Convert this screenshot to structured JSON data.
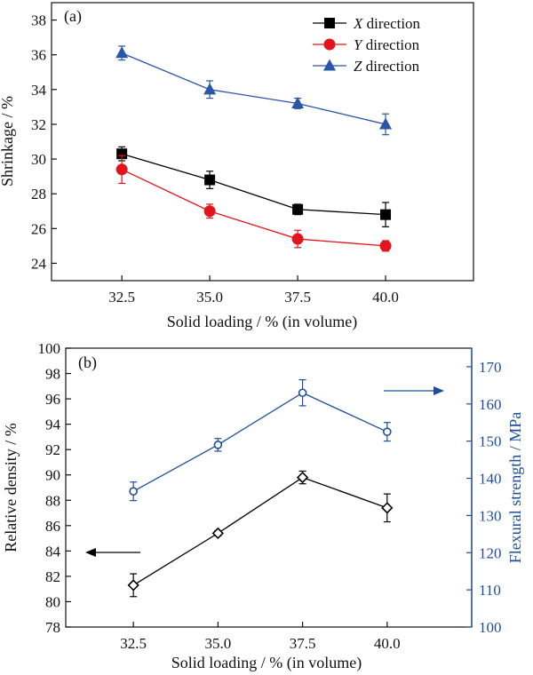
{
  "chart_data": [
    {
      "type": "line",
      "panel_label": "(a)",
      "xlabel": "Solid loading / % (in volume)",
      "ylabel": "Shrinkage / %",
      "x": [
        32.5,
        35.0,
        37.5,
        40.0
      ],
      "x_tick_labels": [
        "32.5",
        "35.0",
        "37.5",
        "40.0"
      ],
      "xlim": [
        30.5,
        42.5
      ],
      "ylim": [
        23,
        39
      ],
      "y_ticks": [
        24,
        26,
        28,
        30,
        32,
        34,
        36,
        38
      ],
      "legend_position": "top-right",
      "series": [
        {
          "name": "X direction",
          "legend_italic": "X",
          "legend_rest": " direction",
          "color": "#000000",
          "marker": "square",
          "values": [
            30.3,
            28.8,
            27.1,
            26.8
          ],
          "errors": [
            0.4,
            0.5,
            0.3,
            0.7
          ]
        },
        {
          "name": "Y direction",
          "legend_italic": "Y",
          "legend_rest": " direction",
          "color": "#e3141b",
          "marker": "circle",
          "values": [
            29.4,
            27.0,
            25.4,
            25.0
          ],
          "errors": [
            0.8,
            0.4,
            0.5,
            0.3
          ]
        },
        {
          "name": "Z direction",
          "legend_italic": "Z",
          "legend_rest": " direction",
          "color": "#2a56a8",
          "marker": "triangle",
          "values": [
            36.1,
            34.0,
            33.2,
            32.0
          ],
          "errors": [
            0.4,
            0.5,
            0.3,
            0.6
          ]
        }
      ]
    },
    {
      "type": "line",
      "panel_label": "(b)",
      "xlabel": "Solid loading / % (in volume)",
      "ylabel_left": "Relative density / %",
      "ylabel_right": "Flexural strength / MPa",
      "x": [
        32.5,
        35.0,
        37.5,
        40.0
      ],
      "x_tick_labels": [
        "32.5",
        "35.0",
        "37.5",
        "40.0"
      ],
      "xlim": [
        30.5,
        42.5
      ],
      "ylim_left": [
        78,
        100
      ],
      "y_ticks_left": [
        78,
        80,
        82,
        84,
        86,
        88,
        90,
        92,
        94,
        96,
        98,
        100
      ],
      "ylim_right": [
        100,
        175
      ],
      "y_ticks_right": [
        100,
        110,
        120,
        130,
        140,
        150,
        160,
        170
      ],
      "series": [
        {
          "axis": "left",
          "color": "#000000",
          "marker": "diamond",
          "values": [
            81.3,
            85.4,
            89.8,
            87.4
          ],
          "errors": [
            0.9,
            0.2,
            0.5,
            1.1
          ]
        },
        {
          "axis": "right",
          "color": "#1f4e99",
          "marker": "hollow-circle",
          "values": [
            136.5,
            149.0,
            163.0,
            152.5
          ],
          "errors": [
            2.5,
            1.7,
            3.5,
            2.5
          ]
        }
      ],
      "arrows": [
        {
          "direction": "left",
          "points_to": "left axis",
          "color": "#000000"
        },
        {
          "direction": "right",
          "points_to": "right axis",
          "color": "#1f4e99"
        }
      ]
    }
  ]
}
